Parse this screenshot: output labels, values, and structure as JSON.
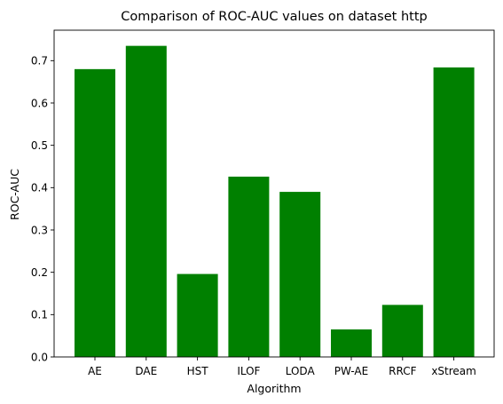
{
  "chart_data": {
    "type": "bar",
    "title": "Comparison of ROC-AUC values on dataset http",
    "xlabel": "Algorithm",
    "ylabel": "ROC-AUC",
    "categories": [
      "AE",
      "DAE",
      "HST",
      "ILOF",
      "LODA",
      "PW-AE",
      "RRCF",
      "xStream"
    ],
    "values": [
      0.68,
      0.735,
      0.196,
      0.426,
      0.39,
      0.065,
      0.123,
      0.684
    ],
    "ylim": [
      0,
      0.772
    ],
    "yticks": [
      0.0,
      0.1,
      0.2,
      0.3,
      0.4,
      0.5,
      0.6,
      0.7
    ],
    "ytick_labels": [
      "0.0",
      "0.1",
      "0.2",
      "0.3",
      "0.4",
      "0.5",
      "0.6",
      "0.7"
    ],
    "bar_color": "#008000",
    "grid": false,
    "legend": "none"
  }
}
